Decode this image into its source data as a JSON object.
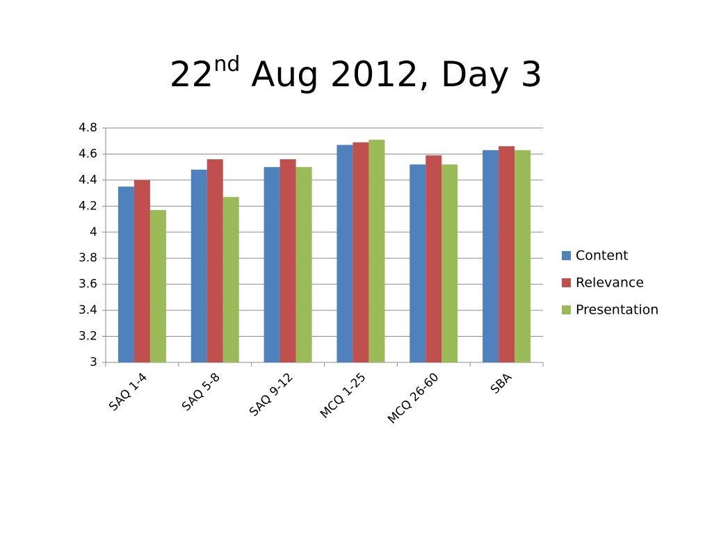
{
  "chart_data": {
    "type": "bar",
    "title": [
      "22",
      "nd",
      " Aug 2012, Day 3"
    ],
    "categories": [
      "SAQ 1-4",
      "SAQ 5-8",
      "SAQ 9-12",
      "MCQ 1-25",
      "MCQ 26-60",
      "SBA"
    ],
    "series": [
      {
        "name": "Content",
        "color": "#4f81bd",
        "values": [
          4.35,
          4.48,
          4.5,
          4.67,
          4.52,
          4.63
        ]
      },
      {
        "name": "Relevance",
        "color": "#c0504d",
        "values": [
          4.4,
          4.56,
          4.56,
          4.69,
          4.59,
          4.66
        ]
      },
      {
        "name": "Presentation",
        "color": "#9bbb59",
        "values": [
          4.17,
          4.27,
          4.5,
          4.71,
          4.52,
          4.63
        ]
      }
    ],
    "ylim": [
      3,
      4.8
    ],
    "yticks": [
      3,
      3.2,
      3.4,
      3.6,
      3.8,
      4,
      4.2,
      4.4,
      4.6,
      4.8
    ],
    "grid": true,
    "legend": "right"
  }
}
